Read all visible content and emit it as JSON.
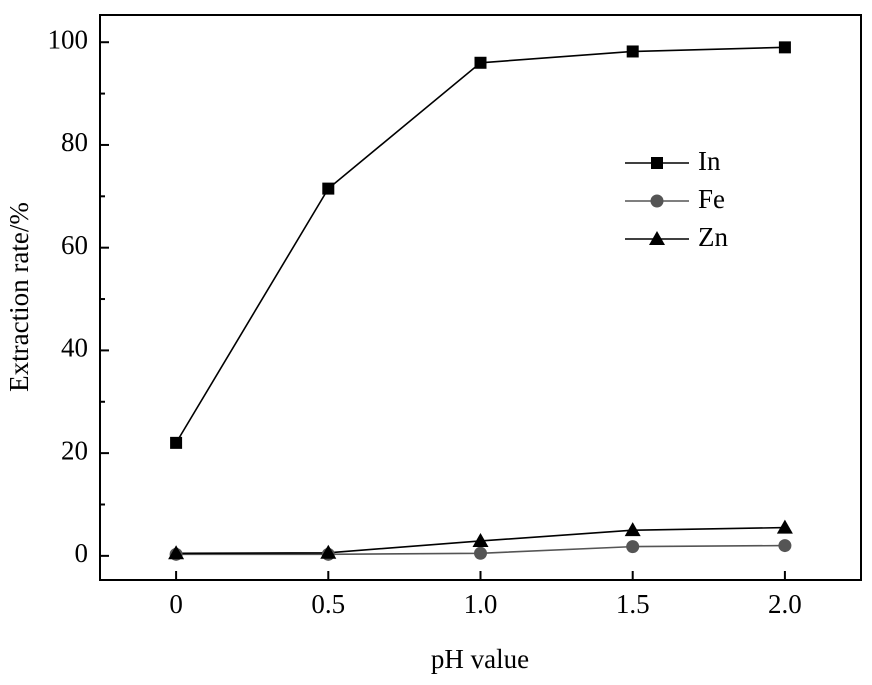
{
  "chart_data": {
    "type": "line",
    "xlabel": "pH value",
    "ylabel": "Extraction rate/%",
    "x": [
      0,
      0.5,
      1.0,
      1.5,
      2.0
    ],
    "series": [
      {
        "name": "In",
        "color": "#000000",
        "marker": "square",
        "values": [
          22,
          71.5,
          96,
          98.2,
          99
        ]
      },
      {
        "name": "Fe",
        "color": "#555555",
        "marker": "circle",
        "values": [
          0.3,
          0.3,
          0.5,
          1.8,
          2.0
        ]
      },
      {
        "name": "Zn",
        "color": "#000000",
        "marker": "triangle",
        "values": [
          0.5,
          0.6,
          2.9,
          5.0,
          5.5
        ]
      }
    ],
    "xlim": [
      -0.25,
      2.25
    ],
    "xticks": [
      0,
      0.5,
      {
        "value": 1.0,
        "label": "1.0"
      },
      1.5,
      {
        "value": 2.0,
        "label": "2.0"
      }
    ],
    "ylim": [
      -4.7,
      105.3
    ],
    "yticks": [
      0,
      20,
      40,
      60,
      80,
      100
    ],
    "yminorticks": [
      10,
      30,
      50,
      70,
      90
    ],
    "grid": false,
    "legend": "upper right"
  }
}
